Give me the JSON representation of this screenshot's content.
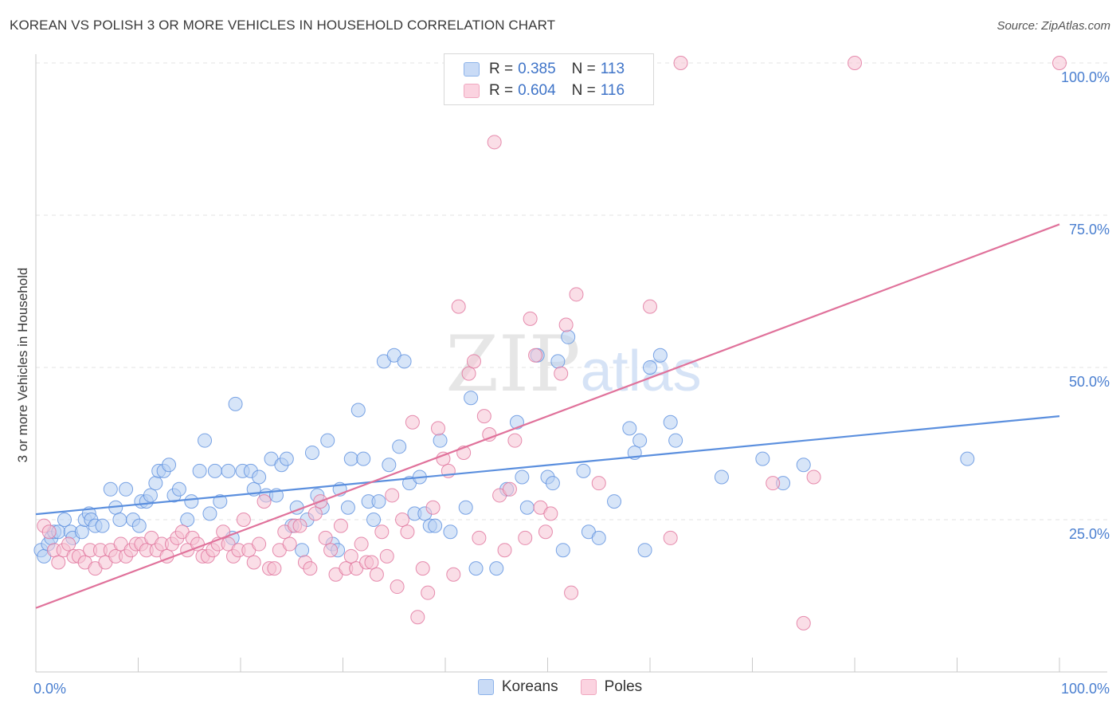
{
  "title": "KOREAN VS POLISH 3 OR MORE VEHICLES IN HOUSEHOLD CORRELATION CHART",
  "source": "Source: ZipAtlas.com",
  "watermark": "ZIPatlas",
  "legend": {
    "rows": [
      {
        "r_label": "R =",
        "r_value": "0.385",
        "n_label": "N =",
        "n_value": "113",
        "color": "#8db3ea"
      },
      {
        "r_label": "R =",
        "r_value": "0.604",
        "n_label": "N =",
        "n_value": "116",
        "color": "#f0a8c0"
      }
    ]
  },
  "bottom_legend": [
    {
      "label": "Koreans",
      "color": "#8db3ea"
    },
    {
      "label": "Poles",
      "color": "#f0a8c0"
    }
  ],
  "chart_data": {
    "type": "scatter",
    "xlabel": "",
    "ylabel": "3 or more Vehicles in Household",
    "xlim": [
      0,
      100
    ],
    "ylim": [
      0,
      100
    ],
    "x_tick_labels": [
      {
        "value": 0,
        "label": "0.0%"
      },
      {
        "value": 100,
        "label": "100.0%"
      }
    ],
    "y_tick_labels": [
      {
        "value": 25,
        "label": "25.0%"
      },
      {
        "value": 50,
        "label": "50.0%"
      },
      {
        "value": 75,
        "label": "75.0%"
      },
      {
        "value": 100,
        "label": "100.0%"
      }
    ],
    "grid": true,
    "legend_position": "top-center",
    "series": [
      {
        "name": "Koreans",
        "color": "#5b8fde",
        "fill": "#b7cff2",
        "trend": {
          "x": [
            0,
            100
          ],
          "y": [
            25.9,
            42.0
          ]
        },
        "points": [
          [
            0.5,
            20
          ],
          [
            0.8,
            19
          ],
          [
            1.2,
            21
          ],
          [
            1.5,
            22
          ],
          [
            1.8,
            23
          ],
          [
            2.2,
            23
          ],
          [
            2.8,
            25
          ],
          [
            3.4,
            23
          ],
          [
            3.6,
            22
          ],
          [
            4.5,
            23
          ],
          [
            4.8,
            25
          ],
          [
            5.2,
            26
          ],
          [
            5.4,
            25
          ],
          [
            5.8,
            24
          ],
          [
            6.5,
            24
          ],
          [
            7.3,
            30
          ],
          [
            7.8,
            27
          ],
          [
            8.2,
            25
          ],
          [
            8.8,
            30
          ],
          [
            9.5,
            25
          ],
          [
            10.1,
            24
          ],
          [
            10.3,
            28
          ],
          [
            10.8,
            28
          ],
          [
            11.2,
            29
          ],
          [
            11.7,
            31
          ],
          [
            12.0,
            33
          ],
          [
            12.5,
            33
          ],
          [
            13.0,
            34
          ],
          [
            13.5,
            29
          ],
          [
            14.0,
            30
          ],
          [
            14.8,
            25
          ],
          [
            15.2,
            28
          ],
          [
            16.0,
            33
          ],
          [
            16.5,
            38
          ],
          [
            17.0,
            26
          ],
          [
            17.5,
            33
          ],
          [
            18.0,
            28
          ],
          [
            18.8,
            33
          ],
          [
            19.2,
            22
          ],
          [
            19.5,
            44
          ],
          [
            20.2,
            33
          ],
          [
            21.0,
            33
          ],
          [
            21.3,
            30
          ],
          [
            21.8,
            32
          ],
          [
            22.5,
            29
          ],
          [
            23.0,
            35
          ],
          [
            23.5,
            29
          ],
          [
            24.0,
            34
          ],
          [
            24.5,
            35
          ],
          [
            25.0,
            24
          ],
          [
            25.5,
            27
          ],
          [
            26.0,
            20
          ],
          [
            26.5,
            25
          ],
          [
            27.0,
            36
          ],
          [
            27.5,
            29
          ],
          [
            28.0,
            27
          ],
          [
            28.5,
            38
          ],
          [
            29.0,
            21
          ],
          [
            29.5,
            20
          ],
          [
            29.7,
            30
          ],
          [
            30.5,
            27
          ],
          [
            30.8,
            35
          ],
          [
            31.5,
            43
          ],
          [
            32.0,
            35
          ],
          [
            32.5,
            28
          ],
          [
            33.0,
            25
          ],
          [
            33.5,
            28
          ],
          [
            34.0,
            51
          ],
          [
            34.5,
            34
          ],
          [
            35.0,
            52
          ],
          [
            35.5,
            37
          ],
          [
            36.0,
            51
          ],
          [
            36.5,
            31
          ],
          [
            37.0,
            26
          ],
          [
            37.5,
            32
          ],
          [
            38.0,
            26
          ],
          [
            38.5,
            24
          ],
          [
            39.0,
            24
          ],
          [
            39.5,
            38
          ],
          [
            40.5,
            23
          ],
          [
            42.0,
            27
          ],
          [
            42.5,
            45
          ],
          [
            43.0,
            17
          ],
          [
            45.0,
            17
          ],
          [
            46.0,
            30
          ],
          [
            47.0,
            41
          ],
          [
            47.5,
            32
          ],
          [
            48.0,
            27
          ],
          [
            49.0,
            52
          ],
          [
            50.0,
            32
          ],
          [
            50.5,
            31
          ],
          [
            51.0,
            51
          ],
          [
            51.5,
            20
          ],
          [
            52.0,
            55
          ],
          [
            53.5,
            33
          ],
          [
            54.0,
            23
          ],
          [
            55.0,
            22
          ],
          [
            56.5,
            28
          ],
          [
            58.0,
            40
          ],
          [
            58.5,
            36
          ],
          [
            59.0,
            38
          ],
          [
            59.5,
            20
          ],
          [
            60.0,
            50
          ],
          [
            61.0,
            52
          ],
          [
            62.0,
            41
          ],
          [
            62.5,
            38
          ],
          [
            67.0,
            32
          ],
          [
            71.0,
            35
          ],
          [
            73.0,
            31
          ],
          [
            75.0,
            34
          ],
          [
            91.0,
            35
          ]
        ]
      },
      {
        "name": "Poles",
        "color": "#e0729b",
        "fill": "#f6c3d3",
        "trend": {
          "x": [
            0,
            100
          ],
          "y": [
            10.5,
            73.5
          ]
        },
        "points": [
          [
            0.8,
            24
          ],
          [
            1.3,
            23
          ],
          [
            1.8,
            20
          ],
          [
            2.2,
            18
          ],
          [
            2.7,
            20
          ],
          [
            3.2,
            21
          ],
          [
            3.7,
            19
          ],
          [
            4.2,
            19
          ],
          [
            4.8,
            18
          ],
          [
            5.3,
            20
          ],
          [
            5.8,
            17
          ],
          [
            6.3,
            20
          ],
          [
            6.8,
            18
          ],
          [
            7.3,
            20
          ],
          [
            7.8,
            19
          ],
          [
            8.3,
            21
          ],
          [
            8.8,
            19
          ],
          [
            9.3,
            20
          ],
          [
            9.8,
            21
          ],
          [
            10.3,
            21
          ],
          [
            10.8,
            20
          ],
          [
            11.3,
            22
          ],
          [
            11.8,
            20
          ],
          [
            12.3,
            21
          ],
          [
            12.8,
            19
          ],
          [
            13.3,
            21
          ],
          [
            13.8,
            22
          ],
          [
            14.3,
            23
          ],
          [
            14.8,
            20
          ],
          [
            15.3,
            22
          ],
          [
            15.8,
            21
          ],
          [
            16.3,
            19
          ],
          [
            16.8,
            19
          ],
          [
            17.3,
            20
          ],
          [
            17.8,
            21
          ],
          [
            18.3,
            23
          ],
          [
            18.8,
            21
          ],
          [
            19.3,
            19
          ],
          [
            19.8,
            20
          ],
          [
            20.3,
            25
          ],
          [
            20.8,
            20
          ],
          [
            21.3,
            18
          ],
          [
            21.8,
            21
          ],
          [
            22.3,
            28
          ],
          [
            22.8,
            17
          ],
          [
            23.3,
            17
          ],
          [
            23.8,
            20
          ],
          [
            24.3,
            23
          ],
          [
            24.8,
            21
          ],
          [
            25.3,
            24
          ],
          [
            25.8,
            24
          ],
          [
            26.3,
            18
          ],
          [
            26.8,
            17
          ],
          [
            27.3,
            26
          ],
          [
            27.8,
            28
          ],
          [
            28.3,
            22
          ],
          [
            28.8,
            20
          ],
          [
            29.3,
            16
          ],
          [
            29.8,
            24
          ],
          [
            30.3,
            17
          ],
          [
            30.8,
            19
          ],
          [
            31.3,
            17
          ],
          [
            31.8,
            21
          ],
          [
            32.3,
            18
          ],
          [
            32.8,
            18
          ],
          [
            33.3,
            16
          ],
          [
            33.8,
            23
          ],
          [
            34.3,
            19
          ],
          [
            34.8,
            29
          ],
          [
            35.3,
            14
          ],
          [
            35.8,
            25
          ],
          [
            36.3,
            23
          ],
          [
            36.8,
            41
          ],
          [
            37.3,
            9
          ],
          [
            37.8,
            17
          ],
          [
            38.3,
            13
          ],
          [
            38.8,
            27
          ],
          [
            39.3,
            40
          ],
          [
            39.8,
            35
          ],
          [
            40.3,
            33
          ],
          [
            40.8,
            16
          ],
          [
            41.3,
            60
          ],
          [
            41.8,
            36
          ],
          [
            42.3,
            49
          ],
          [
            42.8,
            51
          ],
          [
            43.3,
            22
          ],
          [
            43.8,
            42
          ],
          [
            44.3,
            39
          ],
          [
            44.8,
            87
          ],
          [
            45.3,
            29
          ],
          [
            45.8,
            20
          ],
          [
            46.3,
            30
          ],
          [
            46.8,
            38
          ],
          [
            47.3,
            100
          ],
          [
            47.8,
            22
          ],
          [
            48.3,
            58
          ],
          [
            48.8,
            52
          ],
          [
            49.3,
            27
          ],
          [
            49.8,
            23
          ],
          [
            50.3,
            26
          ],
          [
            50.8,
            100
          ],
          [
            51.3,
            49
          ],
          [
            51.8,
            57
          ],
          [
            52.3,
            13
          ],
          [
            52.8,
            62
          ],
          [
            53.3,
            100
          ],
          [
            55.0,
            31
          ],
          [
            60.0,
            60
          ],
          [
            63.0,
            100
          ],
          [
            75.0,
            8
          ],
          [
            80.0,
            100
          ],
          [
            100.0,
            100
          ],
          [
            62.0,
            22
          ],
          [
            76.0,
            32
          ],
          [
            72.0,
            31
          ]
        ]
      }
    ]
  }
}
